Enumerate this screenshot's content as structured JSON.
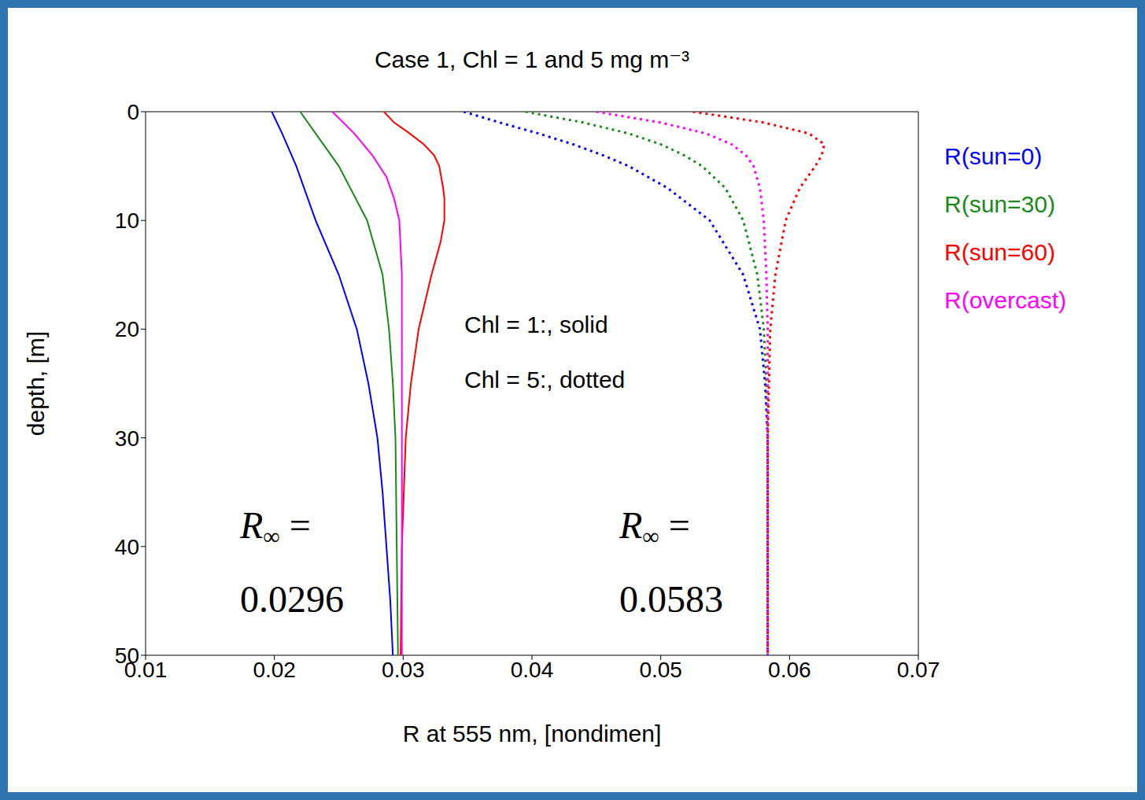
{
  "chart_data": {
    "type": "line",
    "title": "Case 1, Chl = 1 and 5 mg m⁻³",
    "x_label": "R at 555 nm, [nondimen]",
    "y_label": "depth, [m]",
    "xlim": [
      0.01,
      0.07
    ],
    "xticks": [
      0.01,
      0.02,
      0.03,
      0.04,
      0.05,
      0.06,
      0.07
    ],
    "ylim": [
      0,
      50
    ],
    "yticks": [
      0,
      10,
      20,
      30,
      40,
      50
    ],
    "log": false,
    "grid": false,
    "legend": "right",
    "annotations": [
      "Chl = 1:, solid",
      "Chl = 5:, dotted",
      "R∞ = 0.0296",
      "R∞ = 0.0583"
    ],
    "series": [
      {
        "name": "R(sun=0)",
        "color": "#0000ff",
        "line_style": "solid",
        "y": [
          0,
          2,
          5,
          10,
          15,
          20,
          25,
          30,
          35,
          40,
          45,
          50
        ],
        "x": [
          0.0198,
          0.0206,
          0.0217,
          0.0232,
          0.025,
          0.0264,
          0.0273,
          0.028,
          0.0284,
          0.0287,
          0.029,
          0.0292
        ]
      },
      {
        "name": "R(sun=30)",
        "color": "#1a8a1a",
        "line_style": "solid",
        "y": [
          0,
          2,
          5,
          10,
          15,
          20,
          25,
          30,
          40,
          50
        ],
        "x": [
          0.022,
          0.0232,
          0.025,
          0.0272,
          0.0284,
          0.0289,
          0.0292,
          0.0294,
          0.0295,
          0.0296
        ]
      },
      {
        "name": "R(sun=60)",
        "color": "#ff0000",
        "line_style": "solid",
        "y": [
          0,
          1,
          2,
          3,
          4,
          5,
          7,
          8,
          10,
          12,
          15,
          20,
          25,
          30,
          40,
          50
        ],
        "x": [
          0.0285,
          0.0293,
          0.0305,
          0.0316,
          0.0324,
          0.0328,
          0.0331,
          0.0332,
          0.0332,
          0.0329,
          0.0322,
          0.0312,
          0.0306,
          0.0302,
          0.0299,
          0.0298
        ]
      },
      {
        "name": "R(overcast)",
        "color": "#ff00ff",
        "line_style": "solid",
        "y": [
          0,
          2,
          4,
          6,
          8,
          10,
          15,
          20,
          30,
          50
        ],
        "x": [
          0.0245,
          0.0262,
          0.0276,
          0.0287,
          0.0293,
          0.0297,
          0.0299,
          0.0299,
          0.0299,
          0.0299
        ]
      },
      {
        "name": "R(sun=0)",
        "color": "#0000ff",
        "line_style": "dotted",
        "y": [
          0,
          1,
          2,
          3,
          4,
          5,
          7,
          10,
          15,
          20,
          25,
          30,
          50
        ],
        "x": [
          0.0347,
          0.0375,
          0.0405,
          0.0432,
          0.0455,
          0.0475,
          0.0505,
          0.0538,
          0.0564,
          0.0577,
          0.0581,
          0.0583,
          0.0583
        ]
      },
      {
        "name": "R(sun=30)",
        "color": "#1a8a1a",
        "line_style": "dotted",
        "y": [
          0,
          1,
          2,
          3,
          4,
          5,
          7,
          10,
          15,
          20,
          25,
          30,
          50
        ],
        "x": [
          0.0395,
          0.044,
          0.0475,
          0.05,
          0.0518,
          0.0532,
          0.055,
          0.0564,
          0.0575,
          0.058,
          0.0582,
          0.0583,
          0.0583
        ]
      },
      {
        "name": "R(sun=60)",
        "color": "#ff0000",
        "line_style": "dotted",
        "y": [
          0,
          1,
          2,
          3,
          4,
          5,
          7,
          10,
          15,
          20,
          25,
          30,
          50
        ],
        "x": [
          0.0525,
          0.058,
          0.0615,
          0.0627,
          0.0625,
          0.062,
          0.0608,
          0.0597,
          0.0589,
          0.0585,
          0.0584,
          0.0583,
          0.0583
        ]
      },
      {
        "name": "R(overcast)",
        "color": "#ff00ff",
        "line_style": "dotted",
        "y": [
          0,
          1,
          2,
          3,
          4,
          5,
          7,
          10,
          15,
          20,
          50
        ],
        "x": [
          0.045,
          0.05,
          0.0535,
          0.0555,
          0.0566,
          0.0572,
          0.0577,
          0.058,
          0.0582,
          0.0583,
          0.0583
        ]
      }
    ]
  }
}
